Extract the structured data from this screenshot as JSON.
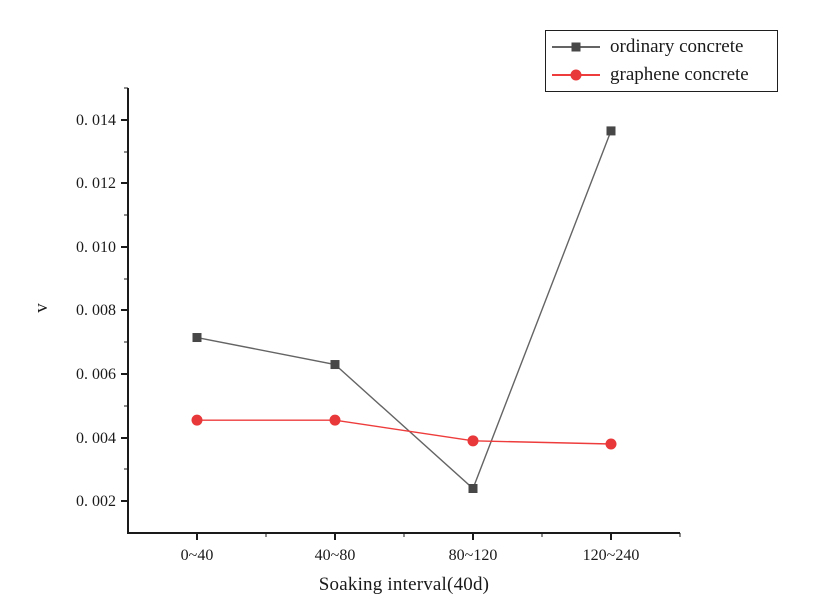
{
  "chart_data": {
    "type": "line",
    "title": "",
    "xlabel": "Soaking interval(40d)",
    "ylabel": "v",
    "categories": [
      "0~40",
      "40~80",
      "80~120",
      "120~240"
    ],
    "series": [
      {
        "name": "ordinary concrete",
        "marker": "square",
        "marker_color": "#474747",
        "line_color": "#646464",
        "values": [
          0.00715,
          0.0063,
          0.0024,
          0.01365
        ]
      },
      {
        "name": "graphene concrete",
        "marker": "circle",
        "marker_color": "#e8383a",
        "line_color": "#ee3c3c",
        "values": [
          0.00455,
          0.00455,
          0.0039,
          0.0038
        ]
      }
    ],
    "ylim": [
      0.001,
      0.015
    ],
    "y_ticks": [
      0.002,
      0.004,
      0.006,
      0.008,
      0.01,
      0.012,
      0.014
    ],
    "y_tick_labels": [
      "0. 002",
      "0. 004",
      "0. 006",
      "0. 008",
      "0. 010",
      "0. 012",
      "0. 014"
    ],
    "y_minor_step": 0.001,
    "grid": false,
    "legend_position": "top-right",
    "axis_color": "#1a1a1a",
    "background_color": "#ffffff"
  }
}
